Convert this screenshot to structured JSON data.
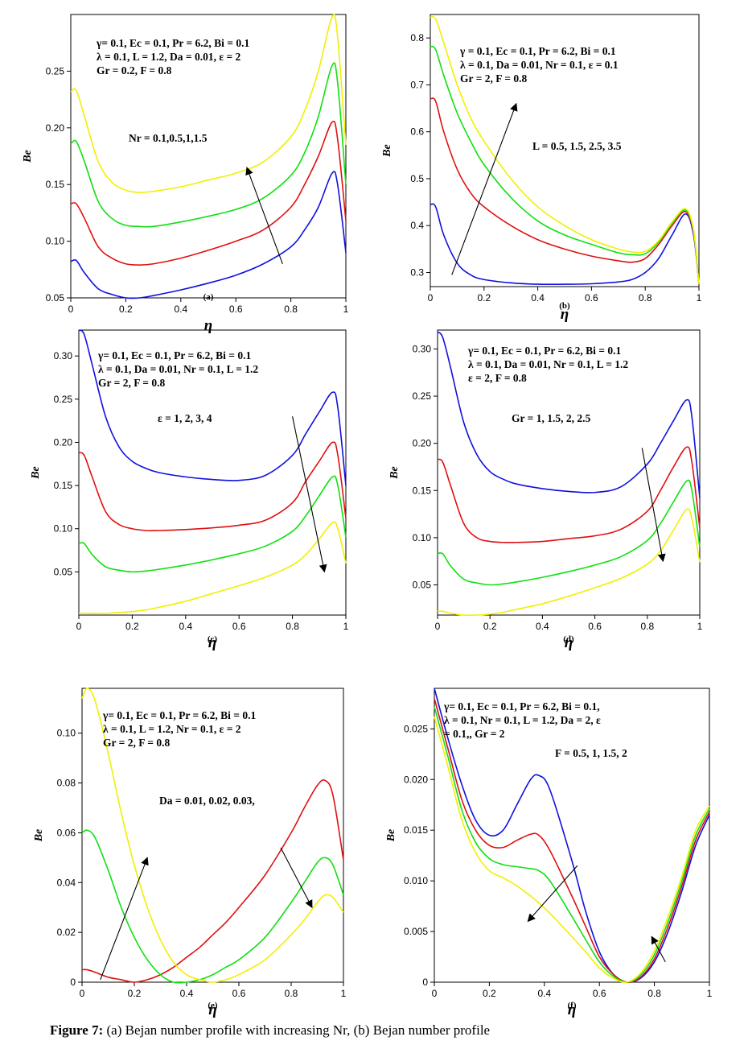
{
  "caption": {
    "label": "Figure 7:",
    "text": "(a) Bejan number profile with increasing Nr, (b) Bejan number profile"
  },
  "colors": {
    "blue": "#1010e0",
    "red": "#e01010",
    "green": "#10e010",
    "yellow": "#f0f000"
  },
  "chart_data": [
    {
      "type": "line",
      "panel_label": "(a)",
      "xlabel": "η",
      "ylabel": "Be",
      "xlim": [
        0,
        1
      ],
      "ylim": [
        0.05,
        0.3
      ],
      "xticks": [
        "0",
        "0.2",
        "0.4",
        "0.6",
        "0.8",
        "1"
      ],
      "yticks": [
        "0.05",
        "0.10",
        "0.15",
        "0.20",
        "0.25"
      ],
      "annotation_lines": [
        "γ= 0.1, Ec = 0.1, Pr = 6.2, Bi = 0.1",
        "λ = 0.1, L = 1.2, Da = 0.01, ε = 2",
        "Gr = 0.2, F = 0.8"
      ],
      "param_label": "Nr = 0.1,0.5,1,1.5",
      "x": [
        0,
        0.02,
        0.05,
        0.1,
        0.15,
        0.2,
        0.25,
        0.3,
        0.4,
        0.5,
        0.6,
        0.7,
        0.8,
        0.85,
        0.9,
        0.95,
        0.97,
        1.0
      ],
      "series": [
        {
          "color": "blue",
          "values": [
            0.082,
            0.083,
            0.072,
            0.058,
            0.053,
            0.05,
            0.05,
            0.052,
            0.057,
            0.063,
            0.07,
            0.08,
            0.095,
            0.11,
            0.13,
            0.16,
            0.15,
            0.09
          ]
        },
        {
          "color": "red",
          "values": [
            0.133,
            0.133,
            0.12,
            0.095,
            0.085,
            0.08,
            0.079,
            0.08,
            0.085,
            0.092,
            0.1,
            0.11,
            0.13,
            0.15,
            0.175,
            0.205,
            0.19,
            0.118
          ]
        },
        {
          "color": "green",
          "values": [
            0.186,
            0.188,
            0.17,
            0.135,
            0.12,
            0.114,
            0.113,
            0.113,
            0.117,
            0.122,
            0.128,
            0.138,
            0.158,
            0.178,
            0.21,
            0.255,
            0.24,
            0.15
          ]
        },
        {
          "color": "yellow",
          "values": [
            0.232,
            0.233,
            0.21,
            0.17,
            0.152,
            0.145,
            0.143,
            0.144,
            0.148,
            0.154,
            0.16,
            0.17,
            0.192,
            0.215,
            0.25,
            0.298,
            0.28,
            0.185
          ]
        }
      ],
      "arrow": {
        "from": [
          0.77,
          0.08
        ],
        "to": [
          0.64,
          0.165
        ]
      }
    },
    {
      "type": "line",
      "panel_label": "(b)",
      "xlabel": "η",
      "ylabel": "Be",
      "xlim": [
        0,
        1
      ],
      "ylim": [
        0.27,
        0.85
      ],
      "xticks": [
        "0",
        "0.2",
        "0.4",
        "0.6",
        "0.8",
        "1"
      ],
      "yticks": [
        "0.3",
        "0.4",
        "0.5",
        "0.6",
        "0.7",
        "0.8"
      ],
      "annotation_lines": [
        "γ = 0.1, Ec = 0.1, Pr = 6.2, Bi = 0.1",
        "λ = 0.1, Da = 0.01, Nr = 0.1, ε = 0.1",
        "Gr = 2, F = 0.8"
      ],
      "param_label": "L = 0.5, 1.5, 2.5, 3.5",
      "x": [
        0,
        0.02,
        0.05,
        0.1,
        0.15,
        0.2,
        0.3,
        0.4,
        0.5,
        0.6,
        0.7,
        0.75,
        0.8,
        0.85,
        0.9,
        0.95,
        0.98,
        1.0
      ],
      "series": [
        {
          "color": "blue",
          "values": [
            0.445,
            0.44,
            0.38,
            0.32,
            0.295,
            0.285,
            0.278,
            0.275,
            0.275,
            0.276,
            0.28,
            0.285,
            0.3,
            0.33,
            0.38,
            0.425,
            0.38,
            0.275
          ]
        },
        {
          "color": "red",
          "values": [
            0.67,
            0.665,
            0.6,
            0.52,
            0.47,
            0.44,
            0.4,
            0.37,
            0.35,
            0.335,
            0.325,
            0.322,
            0.33,
            0.36,
            0.4,
            0.43,
            0.385,
            0.275
          ]
        },
        {
          "color": "green",
          "values": [
            0.782,
            0.775,
            0.72,
            0.64,
            0.58,
            0.53,
            0.46,
            0.41,
            0.38,
            0.36,
            0.342,
            0.338,
            0.34,
            0.365,
            0.405,
            0.433,
            0.388,
            0.275
          ]
        },
        {
          "color": "yellow",
          "values": [
            0.845,
            0.84,
            0.79,
            0.7,
            0.63,
            0.58,
            0.5,
            0.44,
            0.4,
            0.37,
            0.35,
            0.344,
            0.345,
            0.368,
            0.408,
            0.436,
            0.39,
            0.275
          ]
        }
      ],
      "arrow": {
        "from": [
          0.08,
          0.295
        ],
        "to": [
          0.32,
          0.66
        ]
      }
    },
    {
      "type": "line",
      "panel_label": "(c)",
      "xlabel": "η",
      "ylabel": "Be",
      "xlim": [
        0,
        1
      ],
      "ylim": [
        0,
        0.33
      ],
      "xticks": [
        "0",
        "0.2",
        "0.4",
        "0.6",
        "0.8",
        "1"
      ],
      "yticks": [
        "0.05",
        "0.10",
        "0.15",
        "0.20",
        "0.25",
        "0.30"
      ],
      "annotation_lines": [
        "γ= 0.1, Ec = 0.1, Pr = 6.2, Bi = 0.1",
        "λ = 0.1, Da = 0.01, Nr = 0.1, L = 1.2",
        "Gr = 2, F = 0.8"
      ],
      "param_label": "ε = 1, 2, 3, 4",
      "x": [
        0,
        0.02,
        0.05,
        0.1,
        0.15,
        0.2,
        0.25,
        0.3,
        0.4,
        0.5,
        0.6,
        0.7,
        0.8,
        0.85,
        0.9,
        0.95,
        0.97,
        1.0
      ],
      "series": [
        {
          "color": "blue",
          "values": [
            0.33,
            0.325,
            0.29,
            0.23,
            0.195,
            0.178,
            0.17,
            0.165,
            0.16,
            0.157,
            0.156,
            0.162,
            0.185,
            0.21,
            0.235,
            0.258,
            0.24,
            0.15
          ]
        },
        {
          "color": "red",
          "values": [
            0.188,
            0.185,
            0.16,
            0.12,
            0.105,
            0.1,
            0.098,
            0.098,
            0.099,
            0.101,
            0.104,
            0.11,
            0.13,
            0.155,
            0.178,
            0.2,
            0.185,
            0.112
          ]
        },
        {
          "color": "green",
          "values": [
            0.083,
            0.083,
            0.07,
            0.056,
            0.052,
            0.05,
            0.051,
            0.053,
            0.058,
            0.064,
            0.071,
            0.08,
            0.097,
            0.115,
            0.138,
            0.16,
            0.15,
            0.09
          ]
        },
        {
          "color": "yellow",
          "values": [
            0.002,
            0.002,
            0.002,
            0.002,
            0.003,
            0.004,
            0.006,
            0.009,
            0.016,
            0.025,
            0.034,
            0.044,
            0.058,
            0.07,
            0.088,
            0.107,
            0.1,
            0.06
          ]
        }
      ],
      "arrow": {
        "from": [
          0.8,
          0.23
        ],
        "to": [
          0.92,
          0.05
        ]
      }
    },
    {
      "type": "line",
      "panel_label": "(d)",
      "xlabel": "η",
      "ylabel": "Be",
      "xlim": [
        0,
        1
      ],
      "ylim": [
        0.018,
        0.32
      ],
      "xticks": [
        "0",
        "0.2",
        "0.4",
        "0.6",
        "0.8",
        "1"
      ],
      "yticks": [
        "0.05",
        "0.10",
        "0.15",
        "0.20",
        "0.25",
        "0.30"
      ],
      "annotation_lines": [
        "γ= 0.1, Ec = 0.1, Pr = 6.2, Bi = 0.1",
        "λ = 0.1, Da = 0.01, Nr = 0.1, L = 1.2",
        "ε = 2, F = 0.8"
      ],
      "param_label": "Gr = 1, 1.5, 2, 2.5",
      "x": [
        0,
        0.02,
        0.05,
        0.1,
        0.15,
        0.2,
        0.25,
        0.3,
        0.4,
        0.5,
        0.6,
        0.7,
        0.8,
        0.85,
        0.9,
        0.95,
        0.97,
        1.0
      ],
      "series": [
        {
          "color": "blue",
          "values": [
            0.318,
            0.312,
            0.28,
            0.222,
            0.188,
            0.17,
            0.162,
            0.157,
            0.152,
            0.149,
            0.148,
            0.154,
            0.178,
            0.2,
            0.224,
            0.246,
            0.228,
            0.142
          ]
        },
        {
          "color": "red",
          "values": [
            0.183,
            0.18,
            0.155,
            0.115,
            0.1,
            0.096,
            0.095,
            0.095,
            0.096,
            0.099,
            0.102,
            0.109,
            0.128,
            0.15,
            0.175,
            0.196,
            0.18,
            0.11
          ]
        },
        {
          "color": "green",
          "values": [
            0.083,
            0.083,
            0.07,
            0.056,
            0.052,
            0.05,
            0.051,
            0.053,
            0.058,
            0.064,
            0.071,
            0.08,
            0.097,
            0.115,
            0.138,
            0.16,
            0.15,
            0.09
          ]
        },
        {
          "color": "yellow",
          "values": [
            0.022,
            0.022,
            0.02,
            0.018,
            0.018,
            0.019,
            0.021,
            0.024,
            0.03,
            0.038,
            0.047,
            0.057,
            0.072,
            0.086,
            0.108,
            0.13,
            0.12,
            0.074
          ]
        }
      ],
      "arrow": {
        "from": [
          0.78,
          0.195
        ],
        "to": [
          0.86,
          0.075
        ]
      }
    },
    {
      "type": "line",
      "panel_label": "(e)",
      "xlabel": "η",
      "ylabel": "Be",
      "xlim": [
        0,
        1
      ],
      "ylim": [
        0,
        0.118
      ],
      "xticks": [
        "0",
        "0.2",
        "0.4",
        "0.6",
        "0.8",
        "1"
      ],
      "yticks": [
        "0",
        "0.02",
        "0.04",
        "0.06",
        "0.08",
        "0.10"
      ],
      "annotation_lines": [
        "γ= 0.1, Ec = 0.1, Pr = 6.2, Bi = 0.1",
        "λ = 0.1, L = 1.2, Nr = 0.1, ε = 2",
        "Gr = 2, F = 0.8"
      ],
      "param_label": "Da = 0.01, 0.02, 0.03,",
      "x": [
        0,
        0.02,
        0.05,
        0.1,
        0.15,
        0.2,
        0.25,
        0.3,
        0.35,
        0.4,
        0.45,
        0.5,
        0.55,
        0.6,
        0.7,
        0.8,
        0.85,
        0.9,
        0.93,
        0.96,
        1.0
      ],
      "series": [
        {
          "color": "red",
          "values": [
            0.005,
            0.005,
            0.004,
            0.002,
            0.001,
            0.0,
            0.001,
            0.003,
            0.006,
            0.01,
            0.014,
            0.019,
            0.024,
            0.03,
            0.043,
            0.06,
            0.07,
            0.079,
            0.081,
            0.075,
            0.049
          ]
        },
        {
          "color": "green",
          "values": [
            0.06,
            0.061,
            0.058,
            0.045,
            0.03,
            0.018,
            0.009,
            0.003,
            0.0,
            0.0,
            0.001,
            0.003,
            0.006,
            0.009,
            0.018,
            0.032,
            0.04,
            0.048,
            0.05,
            0.047,
            0.035
          ]
        },
        {
          "color": "yellow",
          "values": [
            0.114,
            0.118,
            0.113,
            0.092,
            0.068,
            0.047,
            0.03,
            0.017,
            0.008,
            0.003,
            0.001,
            0.0,
            0.001,
            0.003,
            0.009,
            0.019,
            0.025,
            0.032,
            0.035,
            0.034,
            0.028
          ]
        }
      ],
      "arrows": [
        {
          "from": [
            0.07,
            0.001
          ],
          "to": [
            0.25,
            0.05
          ]
        },
        {
          "from": [
            0.76,
            0.054
          ],
          "to": [
            0.88,
            0.03
          ]
        }
      ]
    },
    {
      "type": "line",
      "panel_label": "(f)",
      "xlabel": "η",
      "ylabel": "Be",
      "xlim": [
        0,
        1
      ],
      "ylim": [
        0,
        0.029
      ],
      "xticks": [
        "0",
        "0.2",
        "0.4",
        "0.6",
        "0.8",
        "1"
      ],
      "yticks": [
        "0",
        "0.005",
        "0.010",
        "0.015",
        "0.020",
        "0.025"
      ],
      "annotation_lines": [
        "γ= 0.1, Ec = 0.1, Pr = 6.2, Bi = 0.1,",
        "λ = 0.1, Nr = 0.1, L = 1.2, Da = 2, ε",
        "= 0.1,, Gr = 2"
      ],
      "param_label": "F = 0.5, 1, 1.5, 2",
      "x": [
        0,
        0.05,
        0.1,
        0.15,
        0.2,
        0.25,
        0.3,
        0.35,
        0.38,
        0.42,
        0.5,
        0.55,
        0.6,
        0.65,
        0.7,
        0.75,
        0.8,
        0.85,
        0.9,
        0.95,
        1.0
      ],
      "series": [
        {
          "color": "blue",
          "values": [
            0.029,
            0.024,
            0.0195,
            0.016,
            0.0145,
            0.015,
            0.0175,
            0.02,
            0.0204,
            0.019,
            0.012,
            0.007,
            0.003,
            0.0008,
            0.0,
            0.0004,
            0.002,
            0.005,
            0.009,
            0.0135,
            0.0165
          ]
        },
        {
          "color": "red",
          "values": [
            0.028,
            0.023,
            0.018,
            0.015,
            0.0135,
            0.0133,
            0.014,
            0.0146,
            0.0145,
            0.013,
            0.0085,
            0.0055,
            0.0025,
            0.0008,
            0.0,
            0.0005,
            0.0023,
            0.0055,
            0.0095,
            0.014,
            0.0168
          ]
        },
        {
          "color": "green",
          "values": [
            0.0272,
            0.0222,
            0.017,
            0.0138,
            0.0122,
            0.0116,
            0.0114,
            0.0112,
            0.011,
            0.01,
            0.0065,
            0.0042,
            0.002,
            0.0006,
            0.0,
            0.0007,
            0.0027,
            0.006,
            0.01,
            0.0145,
            0.0171
          ]
        },
        {
          "color": "yellow",
          "values": [
            0.0262,
            0.0212,
            0.016,
            0.0128,
            0.011,
            0.0103,
            0.0095,
            0.0085,
            0.0078,
            0.0068,
            0.0045,
            0.003,
            0.0014,
            0.0004,
            0.0,
            0.0009,
            0.0031,
            0.0065,
            0.0105,
            0.015,
            0.0174
          ]
        }
      ],
      "arrows": [
        {
          "from": [
            0.52,
            0.0115
          ],
          "to": [
            0.34,
            0.006
          ]
        },
        {
          "from": [
            0.84,
            0.002
          ],
          "to": [
            0.79,
            0.0045
          ]
        }
      ]
    }
  ]
}
